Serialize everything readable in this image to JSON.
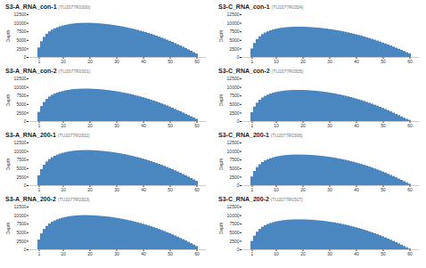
{
  "chart_data": [
    {
      "type": "bar",
      "title": "S3-A_RNA_con-1",
      "subtitle": "(TU2077R0300)",
      "y_label": "Depth",
      "color": "#4a86c0",
      "categories": [
        1,
        2,
        3,
        4,
        5,
        6,
        7,
        8,
        9,
        10,
        11,
        12,
        13,
        14,
        15,
        16,
        17,
        18,
        19,
        20,
        21,
        22,
        23,
        24,
        25,
        26,
        27,
        28,
        29,
        30,
        31,
        32,
        33,
        34,
        35,
        36,
        37,
        38,
        39,
        40,
        41,
        42,
        43,
        44,
        45,
        46,
        47,
        48,
        49,
        50,
        51,
        52,
        53,
        54,
        55,
        56,
        57,
        58,
        59,
        60
      ],
      "values": [
        2800,
        4600,
        5900,
        6800,
        7500,
        8000,
        8400,
        8700,
        9000,
        9200,
        9400,
        9550,
        9700,
        9800,
        9880,
        9940,
        9980,
        10000,
        10000,
        9990,
        9960,
        9920,
        9870,
        9810,
        9740,
        9660,
        9570,
        9470,
        9360,
        9240,
        9110,
        8970,
        8820,
        8660,
        8490,
        8310,
        8120,
        7920,
        7710,
        7490,
        7260,
        7020,
        6770,
        6510,
        6240,
        5960,
        5670,
        5370,
        5060,
        4740,
        4410,
        4070,
        3720,
        3360,
        2990,
        2610,
        2220,
        1820,
        1410,
        990
      ],
      "ylim": [
        0,
        12500
      ],
      "yticks": [
        0,
        2500,
        5000,
        7500,
        10000,
        12500
      ]
    },
    {
      "type": "bar",
      "title": "S3-C_RNA_con-1",
      "subtitle": "(TU2077R0304)",
      "y_label": "Depth",
      "color": "#4a86c0",
      "categories": [
        1,
        2,
        3,
        4,
        5,
        6,
        7,
        8,
        9,
        10,
        11,
        12,
        13,
        14,
        15,
        16,
        17,
        18,
        19,
        20,
        21,
        22,
        23,
        24,
        25,
        26,
        27,
        28,
        29,
        30,
        31,
        32,
        33,
        34,
        35,
        36,
        37,
        38,
        39,
        40,
        41,
        42,
        43,
        44,
        45,
        46,
        47,
        48,
        49,
        50,
        51,
        52,
        53,
        54,
        55,
        56,
        57,
        58,
        59,
        60
      ],
      "values": [
        2500,
        4100,
        5250,
        6050,
        6700,
        7150,
        7500,
        7800,
        8050,
        8250,
        8400,
        8530,
        8640,
        8720,
        8780,
        8820,
        8850,
        8860,
        8860,
        8850,
        8830,
        8790,
        8750,
        8700,
        8640,
        8570,
        8490,
        8400,
        8300,
        8190,
        8080,
        7950,
        7820,
        7680,
        7530,
        7370,
        7200,
        7020,
        6830,
        6640,
        6440,
        6230,
        6010,
        5780,
        5540,
        5290,
        5040,
        4780,
        4510,
        4230,
        3940,
        3650,
        3350,
        3040,
        2720,
        2400,
        2070,
        1740,
        1400,
        1060
      ],
      "ylim": [
        0,
        12500
      ],
      "yticks": [
        0,
        2500,
        5000,
        7500,
        10000,
        12500
      ]
    },
    {
      "type": "bar",
      "title": "S3-A_RNA_con-2",
      "subtitle": "(TU2077R0301)",
      "y_label": "Depth",
      "color": "#4a86c0",
      "categories": [
        1,
        2,
        3,
        4,
        5,
        6,
        7,
        8,
        9,
        10,
        11,
        12,
        13,
        14,
        15,
        16,
        17,
        18,
        19,
        20,
        21,
        22,
        23,
        24,
        25,
        26,
        27,
        28,
        29,
        30,
        31,
        32,
        33,
        34,
        35,
        36,
        37,
        38,
        39,
        40,
        41,
        42,
        43,
        44,
        45,
        46,
        47,
        48,
        49,
        50,
        51,
        52,
        53,
        54,
        55,
        56,
        57,
        58,
        59,
        60
      ],
      "values": [
        2700,
        4400,
        5600,
        6500,
        7200,
        7700,
        8050,
        8350,
        8600,
        8800,
        8980,
        9120,
        9250,
        9340,
        9410,
        9460,
        9490,
        9500,
        9500,
        9490,
        9460,
        9420,
        9370,
        9310,
        9240,
        9160,
        9070,
        8970,
        8860,
        8740,
        8610,
        8470,
        8320,
        8160,
        7990,
        7810,
        7620,
        7420,
        7210,
        6990,
        6760,
        6520,
        6270,
        6010,
        5740,
        5460,
        5170,
        4870,
        4560,
        4240,
        3910,
        3570,
        3220,
        2860,
        2500,
        2140,
        1770,
        1400,
        1030,
        680
      ],
      "ylim": [
        0,
        12500
      ],
      "yticks": [
        0,
        2500,
        5000,
        7500,
        10000,
        12500
      ]
    },
    {
      "type": "bar",
      "title": "S3-C_RNA_con-2",
      "subtitle": "(TU2077R0305)",
      "y_label": "Depth",
      "color": "#4a86c0",
      "categories": [
        1,
        2,
        3,
        4,
        5,
        6,
        7,
        8,
        9,
        10,
        11,
        12,
        13,
        14,
        15,
        16,
        17,
        18,
        19,
        20,
        21,
        22,
        23,
        24,
        25,
        26,
        27,
        28,
        29,
        30,
        31,
        32,
        33,
        34,
        35,
        36,
        37,
        38,
        39,
        40,
        41,
        42,
        43,
        44,
        45,
        46,
        47,
        48,
        49,
        50,
        51,
        52,
        53,
        54,
        55,
        56,
        57,
        58,
        59,
        60
      ],
      "values": [
        2600,
        4250,
        5400,
        6250,
        6900,
        7380,
        7750,
        8050,
        8300,
        8500,
        8660,
        8790,
        8900,
        8980,
        9040,
        9080,
        9110,
        9120,
        9120,
        9110,
        9080,
        9040,
        8990,
        8930,
        8860,
        8780,
        8690,
        8590,
        8480,
        8360,
        8230,
        8090,
        7940,
        7780,
        7610,
        7430,
        7240,
        7040,
        6830,
        6610,
        6380,
        6140,
        5890,
        5630,
        5360,
        5080,
        4790,
        4490,
        4180,
        3860,
        3530,
        3190,
        2840,
        2480,
        2110,
        1740,
        1360,
        990,
        640,
        330
      ],
      "ylim": [
        0,
        12500
      ],
      "yticks": [
        0,
        2500,
        5000,
        7500,
        10000,
        12500
      ]
    },
    {
      "type": "bar",
      "title": "S3-A_RNA_200-1",
      "subtitle": "(TU2077R0302)",
      "y_label": "Depth",
      "color": "#4a86c0",
      "categories": [
        1,
        2,
        3,
        4,
        5,
        6,
        7,
        8,
        9,
        10,
        11,
        12,
        13,
        14,
        15,
        16,
        17,
        18,
        19,
        20,
        21,
        22,
        23,
        24,
        25,
        26,
        27,
        28,
        29,
        30,
        31,
        32,
        33,
        34,
        35,
        36,
        37,
        38,
        39,
        40,
        41,
        42,
        43,
        44,
        45,
        46,
        47,
        48,
        49,
        50,
        51,
        52,
        53,
        54,
        55,
        56,
        57,
        58,
        59,
        60
      ],
      "values": [
        2900,
        4700,
        6000,
        6950,
        7650,
        8200,
        8600,
        8950,
        9250,
        9480,
        9680,
        9840,
        9980,
        10080,
        10160,
        10220,
        10260,
        10280,
        10280,
        10270,
        10240,
        10200,
        10150,
        10090,
        10020,
        9940,
        9850,
        9750,
        9640,
        9520,
        9390,
        9250,
        9100,
        8940,
        8770,
        8590,
        8400,
        8200,
        7990,
        7770,
        7540,
        7300,
        7050,
        6790,
        6520,
        6240,
        5950,
        5650,
        5340,
        5020,
        4690,
        4350,
        4000,
        3640,
        3270,
        2890,
        2500,
        2100,
        1690,
        1270
      ],
      "ylim": [
        0,
        12500
      ],
      "yticks": [
        0,
        2500,
        5000,
        7500,
        10000,
        12500
      ]
    },
    {
      "type": "bar",
      "title": "S3-C_RNA_200-1",
      "subtitle": "(TU2077R0306)",
      "y_label": "Depth",
      "color": "#4a86c0",
      "categories": [
        1,
        2,
        3,
        4,
        5,
        6,
        7,
        8,
        9,
        10,
        11,
        12,
        13,
        14,
        15,
        16,
        17,
        18,
        19,
        20,
        21,
        22,
        23,
        24,
        25,
        26,
        27,
        28,
        29,
        30,
        31,
        32,
        33,
        34,
        35,
        36,
        37,
        38,
        39,
        40,
        41,
        42,
        43,
        44,
        45,
        46,
        47,
        48,
        49,
        50,
        51,
        52,
        53,
        54,
        55,
        56,
        57,
        58,
        59,
        60
      ],
      "values": [
        2550,
        4150,
        5300,
        6120,
        6780,
        7250,
        7600,
        7900,
        8150,
        8350,
        8510,
        8640,
        8750,
        8830,
        8890,
        8930,
        8960,
        8970,
        8970,
        8960,
        8940,
        8900,
        8860,
        8810,
        8750,
        8680,
        8600,
        8510,
        8410,
        8300,
        8180,
        8050,
        7910,
        7760,
        7600,
        7430,
        7250,
        7060,
        6860,
        6650,
        6430,
        6200,
        5960,
        5710,
        5450,
        5180,
        4900,
        4610,
        4310,
        4000,
        3680,
        3350,
        3010,
        2660,
        2300,
        1930,
        1560,
        1180,
        800,
        420
      ],
      "ylim": [
        0,
        12500
      ],
      "yticks": [
        0,
        2500,
        5000,
        7500,
        10000,
        12500
      ]
    },
    {
      "type": "bar",
      "title": "S3-A_RNA_200-2",
      "subtitle": "(TU2077R0303)",
      "y_label": "Depth",
      "color": "#4a86c0",
      "categories": [
        1,
        2,
        3,
        4,
        5,
        6,
        7,
        8,
        9,
        10,
        11,
        12,
        13,
        14,
        15,
        16,
        17,
        18,
        19,
        20,
        21,
        22,
        23,
        24,
        25,
        26,
        27,
        28,
        29,
        30,
        31,
        32,
        33,
        34,
        35,
        36,
        37,
        38,
        39,
        40,
        41,
        42,
        43,
        44,
        45,
        46,
        47,
        48,
        49,
        50,
        51,
        52,
        53,
        54,
        55,
        56,
        57,
        58,
        59,
        60
      ],
      "values": [
        2850,
        4650,
        5950,
        6850,
        7550,
        8050,
        8450,
        8780,
        9060,
        9280,
        9460,
        9610,
        9740,
        9840,
        9910,
        9960,
        9990,
        10010,
        10000,
        9980,
        9950,
        9900,
        9850,
        9790,
        9720,
        9640,
        9550,
        9450,
        9340,
        9220,
        9090,
        8950,
        8800,
        8640,
        8470,
        8290,
        8100,
        7900,
        7690,
        7470,
        7240,
        7000,
        6750,
        6490,
        6220,
        5940,
        5650,
        5350,
        5040,
        4720,
        4390,
        4050,
        3700,
        3340,
        2970,
        2590,
        2200,
        1800,
        1390,
        970
      ],
      "ylim": [
        0,
        12500
      ],
      "yticks": [
        0,
        2500,
        5000,
        7500,
        10000,
        12500
      ]
    },
    {
      "type": "bar",
      "title": "S3-C_RNA_200-2",
      "subtitle": "(TU2077R0307)",
      "y_label": "Depth",
      "color": "#4a86c0",
      "categories": [
        1,
        2,
        3,
        4,
        5,
        6,
        7,
        8,
        9,
        10,
        11,
        12,
        13,
        14,
        15,
        16,
        17,
        18,
        19,
        20,
        21,
        22,
        23,
        24,
        25,
        26,
        27,
        28,
        29,
        30,
        31,
        32,
        33,
        34,
        35,
        36,
        37,
        38,
        39,
        40,
        41,
        42,
        43,
        44,
        45,
        46,
        47,
        48,
        49,
        50,
        51,
        52,
        53,
        54,
        55,
        56,
        57,
        58,
        59,
        60
      ],
      "values": [
        2450,
        4000,
        5150,
        5950,
        6600,
        7050,
        7400,
        7700,
        7950,
        8150,
        8300,
        8430,
        8540,
        8620,
        8680,
        8720,
        8750,
        8760,
        8760,
        8750,
        8730,
        8700,
        8660,
        8610,
        8550,
        8480,
        8400,
        8310,
        8210,
        8100,
        7980,
        7850,
        7710,
        7560,
        7400,
        7230,
        7050,
        6860,
        6660,
        6450,
        6230,
        6000,
        5760,
        5510,
        5250,
        4980,
        4700,
        4410,
        4110,
        3800,
        3480,
        3150,
        2810,
        2460,
        2100,
        1730,
        1350,
        970,
        590,
        220
      ],
      "ylim": [
        0,
        12500
      ],
      "yticks": [
        0,
        2500,
        5000,
        7500,
        10000,
        12500
      ]
    }
  ]
}
